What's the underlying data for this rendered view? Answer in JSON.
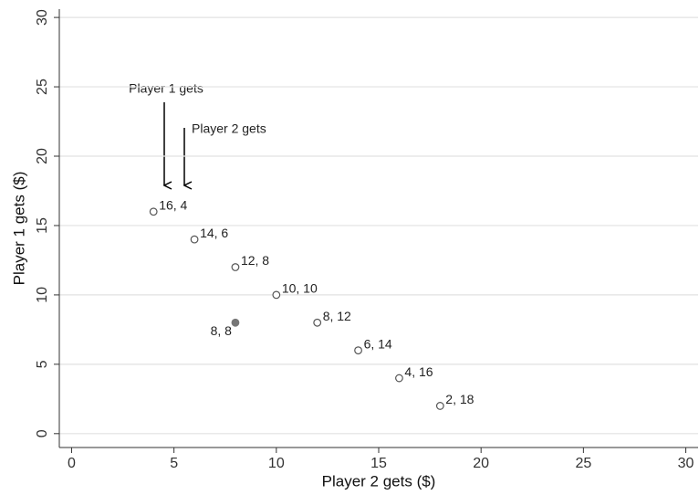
{
  "chart_data": {
    "type": "scatter",
    "x_label": "Player 2 gets ($)",
    "y_label": "Player 1 gets ($)",
    "xlim": [
      -0.6,
      30.6
    ],
    "ylim": [
      -1,
      30.6
    ],
    "xticks": [
      0,
      5,
      10,
      15,
      20,
      25,
      30
    ],
    "yticks": [
      0,
      5,
      10,
      15,
      20,
      25,
      30
    ],
    "grid": true,
    "series": [
      {
        "color": "#555555",
        "filled": false,
        "x": [
          4,
          6,
          8,
          10,
          12,
          14,
          16,
          18
        ],
        "values": [
          16,
          14,
          12,
          10,
          8,
          6,
          4,
          2
        ],
        "value_labels": [
          "16, 4",
          "14, 6",
          "12, 8",
          "10, 10",
          "8, 12",
          "6, 14",
          "4, 16",
          "2, 18"
        ]
      },
      {
        "color": "#777777",
        "filled": true,
        "x": [
          8
        ],
        "values": [
          8
        ],
        "value_labels": [
          "8, 8"
        ]
      }
    ],
    "annotations": [
      "Player 1 gets",
      "Player 2 gets"
    ]
  }
}
